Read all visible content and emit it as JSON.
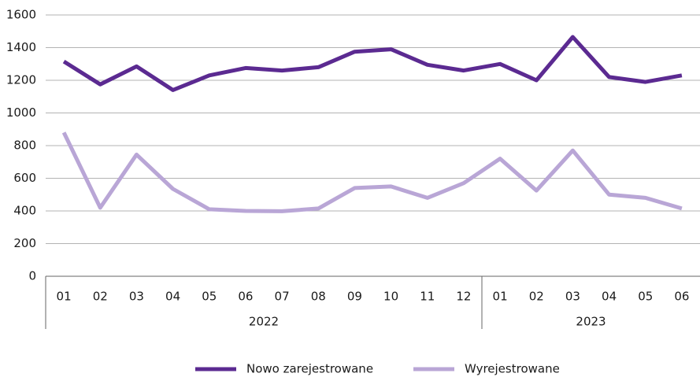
{
  "chart_data": {
    "type": "line",
    "categories": [
      "01",
      "02",
      "03",
      "04",
      "05",
      "06",
      "07",
      "08",
      "09",
      "10",
      "11",
      "12",
      "01",
      "02",
      "03",
      "04",
      "05",
      "06"
    ],
    "groups": [
      {
        "label": "2022",
        "count": 12
      },
      {
        "label": "2023",
        "count": 6
      }
    ],
    "series": [
      {
        "name": "Nowo zarejestrowane",
        "color": "#5b2a91",
        "values": [
          1315,
          1175,
          1285,
          1140,
          1230,
          1275,
          1260,
          1280,
          1375,
          1390,
          1295,
          1260,
          1300,
          1200,
          1465,
          1220,
          1190,
          1230
        ]
      },
      {
        "name": "Wyrejestrowane",
        "color": "#b9a6d6",
        "values": [
          880,
          420,
          745,
          535,
          410,
          400,
          398,
          415,
          540,
          550,
          480,
          570,
          720,
          525,
          770,
          500,
          480,
          415
        ]
      }
    ],
    "ylim": [
      0,
      1600
    ],
    "yticks": [
      0,
      200,
      400,
      600,
      800,
      1000,
      1200,
      1400,
      1600
    ],
    "grid": true,
    "legend": "bottom"
  }
}
